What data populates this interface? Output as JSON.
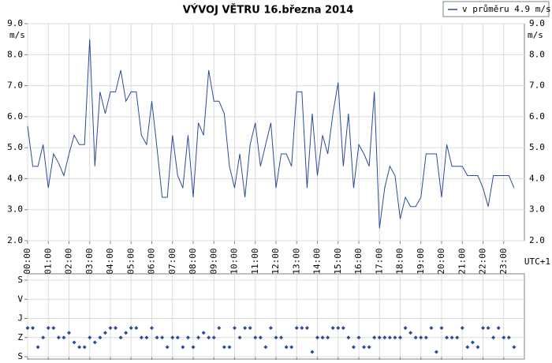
{
  "chart_data": [
    {
      "type": "line",
      "title": "VÝVOJ VĚTRU  16.března 2014",
      "y_label": "m/s",
      "x_label": "UTC+1",
      "x": [
        0,
        0.25,
        0.5,
        0.75,
        1,
        1.25,
        1.5,
        1.75,
        2,
        2.25,
        2.5,
        2.75,
        3,
        3.25,
        3.5,
        3.75,
        4,
        4.25,
        4.5,
        4.75,
        5,
        5.25,
        5.5,
        5.75,
        6,
        6.25,
        6.5,
        6.75,
        7,
        7.25,
        7.5,
        7.75,
        8,
        8.25,
        8.5,
        8.75,
        9,
        9.25,
        9.5,
        9.75,
        10,
        10.25,
        10.5,
        10.75,
        11,
        11.25,
        11.5,
        11.75,
        12,
        12.25,
        12.5,
        12.75,
        13,
        13.25,
        13.5,
        13.75,
        14,
        14.25,
        14.5,
        14.75,
        15,
        15.25,
        15.5,
        15.75,
        16,
        16.25,
        16.5,
        16.75,
        17,
        17.25,
        17.5,
        17.75,
        18,
        18.25,
        18.5,
        18.75,
        19,
        19.25,
        19.5,
        19.75,
        20,
        20.25,
        20.5,
        20.75,
        21,
        21.25,
        21.5,
        21.75,
        22,
        22.25,
        22.5,
        22.75,
        23,
        23.25,
        23.5
      ],
      "series": [
        {
          "name": "v průměru 4.9 m/s",
          "color": "#2b4c9b",
          "values": [
            5.7,
            4.4,
            4.4,
            5.1,
            3.7,
            4.8,
            4.5,
            4.1,
            4.8,
            5.4,
            5.1,
            5.1,
            8.5,
            4.4,
            6.8,
            6.1,
            6.8,
            6.8,
            7.5,
            6.5,
            6.8,
            6.8,
            5.4,
            5.1,
            6.5,
            5.0,
            3.4,
            3.4,
            5.4,
            4.1,
            3.7,
            5.4,
            3.4,
            5.8,
            5.4,
            7.5,
            6.5,
            6.5,
            6.1,
            4.4,
            3.7,
            4.8,
            3.4,
            5.1,
            5.8,
            4.4,
            5.1,
            5.8,
            3.7,
            4.8,
            4.8,
            4.4,
            6.8,
            6.8,
            3.7,
            6.1,
            4.1,
            5.4,
            4.8,
            6.1,
            7.1,
            4.4,
            6.1,
            3.7,
            5.1,
            4.8,
            4.4,
            6.8,
            2.4,
            3.7,
            4.4,
            4.1,
            2.7,
            3.4,
            3.1,
            3.1,
            3.4,
            4.8,
            4.8,
            4.8,
            3.4,
            5.1,
            4.4,
            4.4,
            4.4,
            4.1,
            4.1,
            4.1,
            3.7,
            3.1,
            4.1,
            4.1,
            4.1,
            4.1,
            3.7
          ]
        }
      ],
      "xlim": [
        0,
        24
      ],
      "xticks": [
        {
          "value": 0,
          "label": "00:00"
        },
        {
          "value": 1,
          "label": "01:00"
        },
        {
          "value": 2,
          "label": "02:00"
        },
        {
          "value": 3,
          "label": "03:00"
        },
        {
          "value": 4,
          "label": "04:00"
        },
        {
          "value": 5,
          "label": "05:00"
        },
        {
          "value": 6,
          "label": "06:00"
        },
        {
          "value": 7,
          "label": "07:00"
        },
        {
          "value": 8,
          "label": "08:00"
        },
        {
          "value": 9,
          "label": "09:00"
        },
        {
          "value": 10,
          "label": "10:00"
        },
        {
          "value": 11,
          "label": "11:00"
        },
        {
          "value": 12,
          "label": "12:00"
        },
        {
          "value": 13,
          "label": "13:00"
        },
        {
          "value": 14,
          "label": "14:00"
        },
        {
          "value": 15,
          "label": "15:00"
        },
        {
          "value": 16,
          "label": "16:00"
        },
        {
          "value": 17,
          "label": "17:00"
        },
        {
          "value": 18,
          "label": "18:00"
        },
        {
          "value": 19,
          "label": "19:00"
        },
        {
          "value": 20,
          "label": "20:00"
        },
        {
          "value": 21,
          "label": "21:00"
        },
        {
          "value": 22,
          "label": "22:00"
        },
        {
          "value": 23,
          "label": "23:00"
        }
      ],
      "ylim": [
        2,
        9
      ],
      "yticks": [
        {
          "value": 2,
          "label": "2.0"
        },
        {
          "value": 3,
          "label": "3.0"
        },
        {
          "value": 4,
          "label": "4.0"
        },
        {
          "value": 5,
          "label": "5.0"
        },
        {
          "value": 6,
          "label": "6.0"
        },
        {
          "value": 7,
          "label": "7.0"
        },
        {
          "value": 8,
          "label": "8.0"
        },
        {
          "value": 9,
          "label": "9.0"
        }
      ],
      "grid": true,
      "legend": "top-right"
    },
    {
      "type": "scatter",
      "color": "#2b4c9b",
      "x": [
        0,
        0.25,
        0.5,
        0.75,
        1,
        1.25,
        1.5,
        1.75,
        2,
        2.25,
        2.5,
        2.75,
        3,
        3.25,
        3.5,
        3.75,
        4,
        4.25,
        4.5,
        4.75,
        5,
        5.25,
        5.5,
        5.75,
        6,
        6.25,
        6.5,
        6.75,
        7,
        7.25,
        7.5,
        7.75,
        8,
        8.25,
        8.5,
        8.75,
        9,
        9.25,
        9.5,
        9.75,
        10,
        10.25,
        10.5,
        10.75,
        11,
        11.25,
        11.5,
        11.75,
        12,
        12.25,
        12.5,
        12.75,
        13,
        13.25,
        13.5,
        13.75,
        14,
        14.25,
        14.5,
        14.75,
        15,
        15.25,
        15.5,
        15.75,
        16,
        16.25,
        16.5,
        16.75,
        17,
        17.25,
        17.5,
        17.75,
        18,
        18.25,
        18.5,
        18.75,
        19,
        19.25,
        19.5,
        19.75,
        20,
        20.25,
        20.5,
        20.75,
        21,
        21.25,
        21.5,
        21.75,
        22,
        22.25,
        22.5,
        22.75,
        23,
        23.25,
        23.5
      ],
      "values": [
        225,
        225,
        315,
        270,
        225,
        225,
        270,
        270,
        247.5,
        292.5,
        315,
        315,
        270,
        292.5,
        270,
        247.5,
        225,
        225,
        270,
        247.5,
        225,
        225,
        270,
        270,
        225,
        270,
        270,
        315,
        270,
        270,
        315,
        270,
        315,
        270,
        247.5,
        270,
        270,
        225,
        315,
        315,
        225,
        270,
        225,
        225,
        270,
        270,
        315,
        225,
        270,
        270,
        315,
        315,
        225,
        225,
        225,
        337.5,
        270,
        270,
        270,
        225,
        225,
        225,
        270,
        315,
        270,
        315,
        315,
        270,
        270,
        270,
        270,
        270,
        270,
        225,
        247.5,
        270,
        270,
        270,
        225,
        337.5,
        225,
        270,
        270,
        270,
        225,
        315,
        292.5,
        315,
        225,
        225,
        270,
        225,
        270,
        270,
        315
      ],
      "xlim": [
        0,
        24
      ],
      "xticks": [
        0,
        1,
        2,
        3,
        4,
        5,
        6,
        7,
        8,
        9,
        10,
        11,
        12,
        13,
        14,
        15,
        16,
        17,
        18,
        19,
        20,
        21,
        22,
        23
      ],
      "ylim": [
        360,
        0
      ],
      "yticks": [
        {
          "value": 0,
          "label": "S"
        },
        {
          "value": 90,
          "label": "V"
        },
        {
          "value": 180,
          "label": "J"
        },
        {
          "value": 270,
          "label": "Z"
        },
        {
          "value": 360,
          "label": "S"
        }
      ],
      "grid": true
    }
  ]
}
